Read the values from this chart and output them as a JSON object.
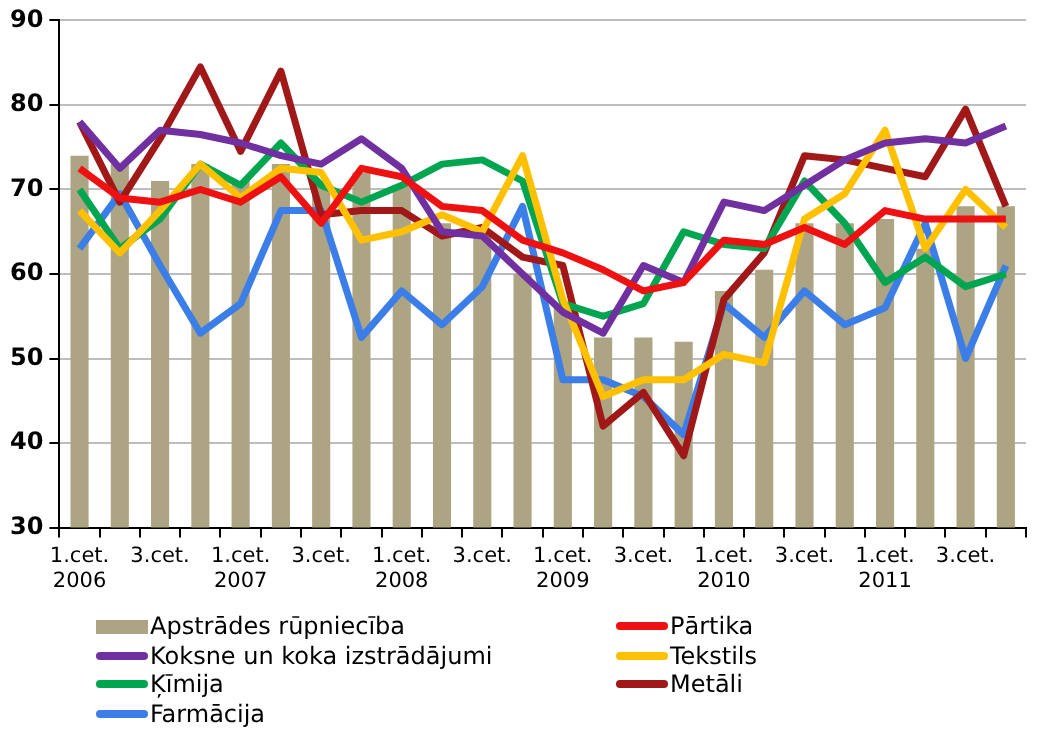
{
  "chart_data": {
    "type": "bar",
    "categories": [
      "1.cet. 2006",
      null,
      "3.cet.",
      null,
      "1.cet. 2007",
      null,
      "3.cet.",
      null,
      "1.cet. 2008",
      null,
      "3.cet.",
      null,
      "1.cet. 2009",
      null,
      "3.cet.",
      null,
      "1.cet. 2010",
      null,
      "3.cet.",
      null,
      "1.cet. 2011",
      null,
      "3.cet.",
      null
    ],
    "series": [
      {
        "name": "Apstrādes rūpniecība",
        "color": "#ada483",
        "values": [
          74,
          73,
          71,
          73,
          71,
          73,
          71,
          72,
          70.5,
          66,
          65,
          60,
          56,
          52.5,
          52.5,
          52,
          58,
          60.5,
          66,
          66,
          66.5,
          63,
          68,
          68
        ]
      },
      {
        "name": "Pārtika",
        "type": "line",
        "color": "#ee1111",
        "values": [
          72.5,
          69,
          68.5,
          70,
          68.5,
          71.5,
          66,
          72.5,
          71.5,
          68,
          67.5,
          64,
          62.5,
          60.5,
          58,
          59,
          64,
          63.5,
          65.5,
          63.5,
          67.5,
          66.5,
          66.5,
          66.5
        ]
      },
      {
        "name": "Koksne un koka izstrādājumi",
        "type": "line",
        "color": "#7030a0",
        "values": [
          78,
          72.5,
          77,
          76.5,
          75.5,
          74,
          73,
          76,
          72.5,
          65,
          64.5,
          60,
          55.5,
          53,
          61,
          59,
          68.5,
          67.5,
          70.5,
          73.5,
          75.5,
          76,
          75.5,
          77.5
        ]
      },
      {
        "name": "Tekstils",
        "type": "line",
        "color": "#ffc000",
        "values": [
          67.5,
          62.5,
          67.5,
          73,
          69,
          72.5,
          72,
          64,
          65,
          67,
          65,
          74,
          57,
          45.5,
          47.5,
          47.5,
          50.5,
          49.5,
          66.5,
          69.5,
          77,
          63,
          70,
          65.5
        ]
      },
      {
        "name": "Ķīmija",
        "type": "line",
        "color": "#00a550",
        "values": [
          70,
          63,
          66.5,
          73,
          70.5,
          75.5,
          70.5,
          68.5,
          70.5,
          73,
          73.5,
          71,
          56.5,
          55,
          56.5,
          65,
          63.5,
          63,
          71,
          66,
          59,
          62,
          58.5,
          60
        ]
      },
      {
        "name": "Metāli",
        "type": "line",
        "color": "#a01818",
        "values": [
          78,
          68.5,
          76,
          84.5,
          74.5,
          84,
          67,
          67.5,
          67.5,
          64.5,
          65.5,
          62,
          61,
          42,
          46,
          38.5,
          57,
          62.5,
          74,
          73.5,
          72.5,
          71.5,
          79.5,
          68
        ]
      },
      {
        "name": "Farmācija",
        "type": "line",
        "color": "#3c7ee8",
        "values": [
          63,
          69.5,
          61,
          53,
          56.5,
          67.5,
          67.5,
          52.5,
          58,
          54,
          58.5,
          68,
          47.5,
          47.5,
          45.5,
          41,
          56.5,
          52.5,
          58,
          54,
          56,
          66,
          50,
          61
        ]
      }
    ],
    "ylim": [
      30,
      90
    ],
    "yticks": [
      30,
      40,
      50,
      60,
      70,
      80,
      90
    ],
    "grid": "y",
    "legend": "bottom",
    "marker": "none",
    "line_style": "solid"
  }
}
